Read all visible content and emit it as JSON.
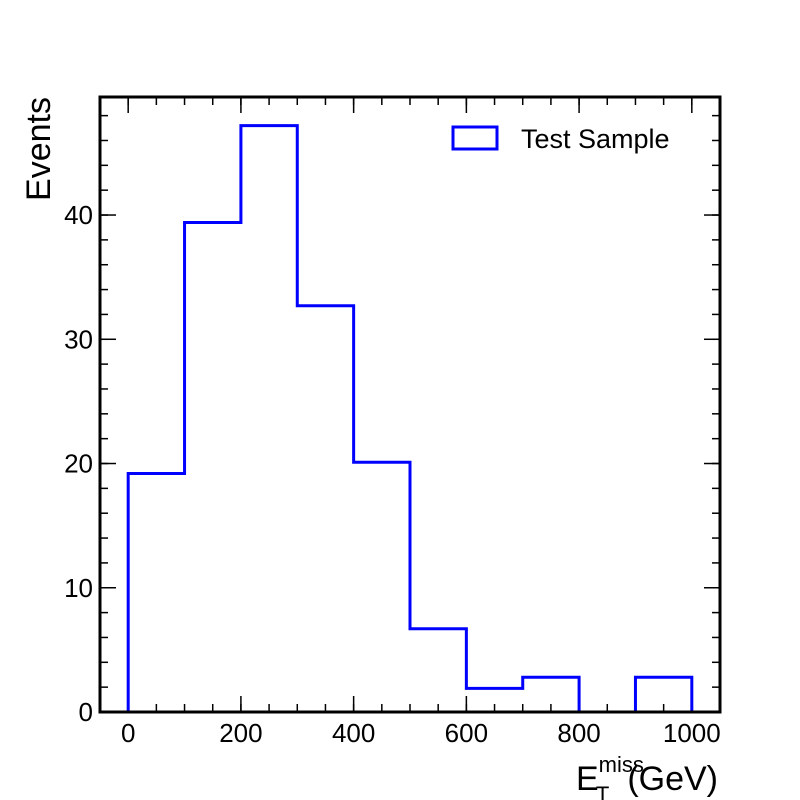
{
  "chart_data": {
    "type": "histogram",
    "bin_edges": [
      0,
      100,
      200,
      300,
      400,
      500,
      600,
      700,
      800,
      900,
      1000
    ],
    "values": [
      19.2,
      39.4,
      47.2,
      32.7,
      20.1,
      6.7,
      1.9,
      2.8,
      0,
      2.8
    ],
    "series": [
      {
        "name": "Test Sample",
        "color": "#0000ff"
      }
    ],
    "xlabel": "E",
    "xlabel_sub": "T",
    "xlabel_sup": "miss",
    "xlabel_unit": "(GeV)",
    "ylabel": "Events",
    "xlim": [
      -50,
      1050
    ],
    "ylim": [
      0,
      49.5
    ],
    "x_ticks": [
      0,
      200,
      400,
      600,
      800,
      1000
    ],
    "y_ticks": [
      0,
      10,
      20,
      30,
      40
    ],
    "x_minor_step": 50,
    "y_minor_step": 2,
    "legend_position": "top-right",
    "grid": false
  }
}
